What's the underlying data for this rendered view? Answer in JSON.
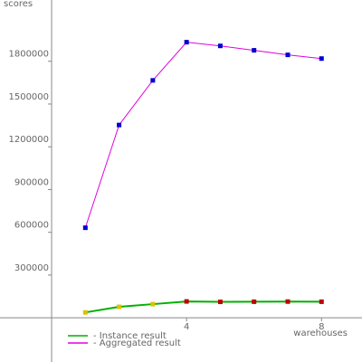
{
  "chart_data": {
    "type": "line",
    "y_label": "scores",
    "x_label": "warehouses",
    "x": [
      1,
      2,
      3,
      4,
      5,
      6,
      7,
      8
    ],
    "series": [
      {
        "name": "- Instance result",
        "color": "#00b000",
        "marker_colors": [
          "#e0c000",
          "#e0c000",
          "#e0c000",
          "#c00000",
          "#c00000",
          "#c00000",
          "#c00000",
          "#c00000"
        ],
        "values": [
          38000,
          77000,
          96000,
          115000,
          112000,
          113000,
          114000,
          113000
        ]
      },
      {
        "name": "- Aggregated result",
        "color": "#e000e0",
        "marker_colors": [
          "#0000d0",
          "#0000d0",
          "#0000d0",
          "#0000d0",
          "#0000d0",
          "#0000d0",
          "#0000d0",
          "#0000d0"
        ],
        "values": [
          632000,
          1353000,
          1666000,
          1934000,
          1908000,
          1877000,
          1845000,
          1819000
        ]
      }
    ],
    "xlim": [
      -1.53,
      9.2
    ],
    "ylim": [
      -310000,
      2230000
    ],
    "xticks": [
      4,
      8
    ],
    "yticks": [
      300000,
      600000,
      900000,
      1200000,
      1500000,
      1800000
    ]
  }
}
